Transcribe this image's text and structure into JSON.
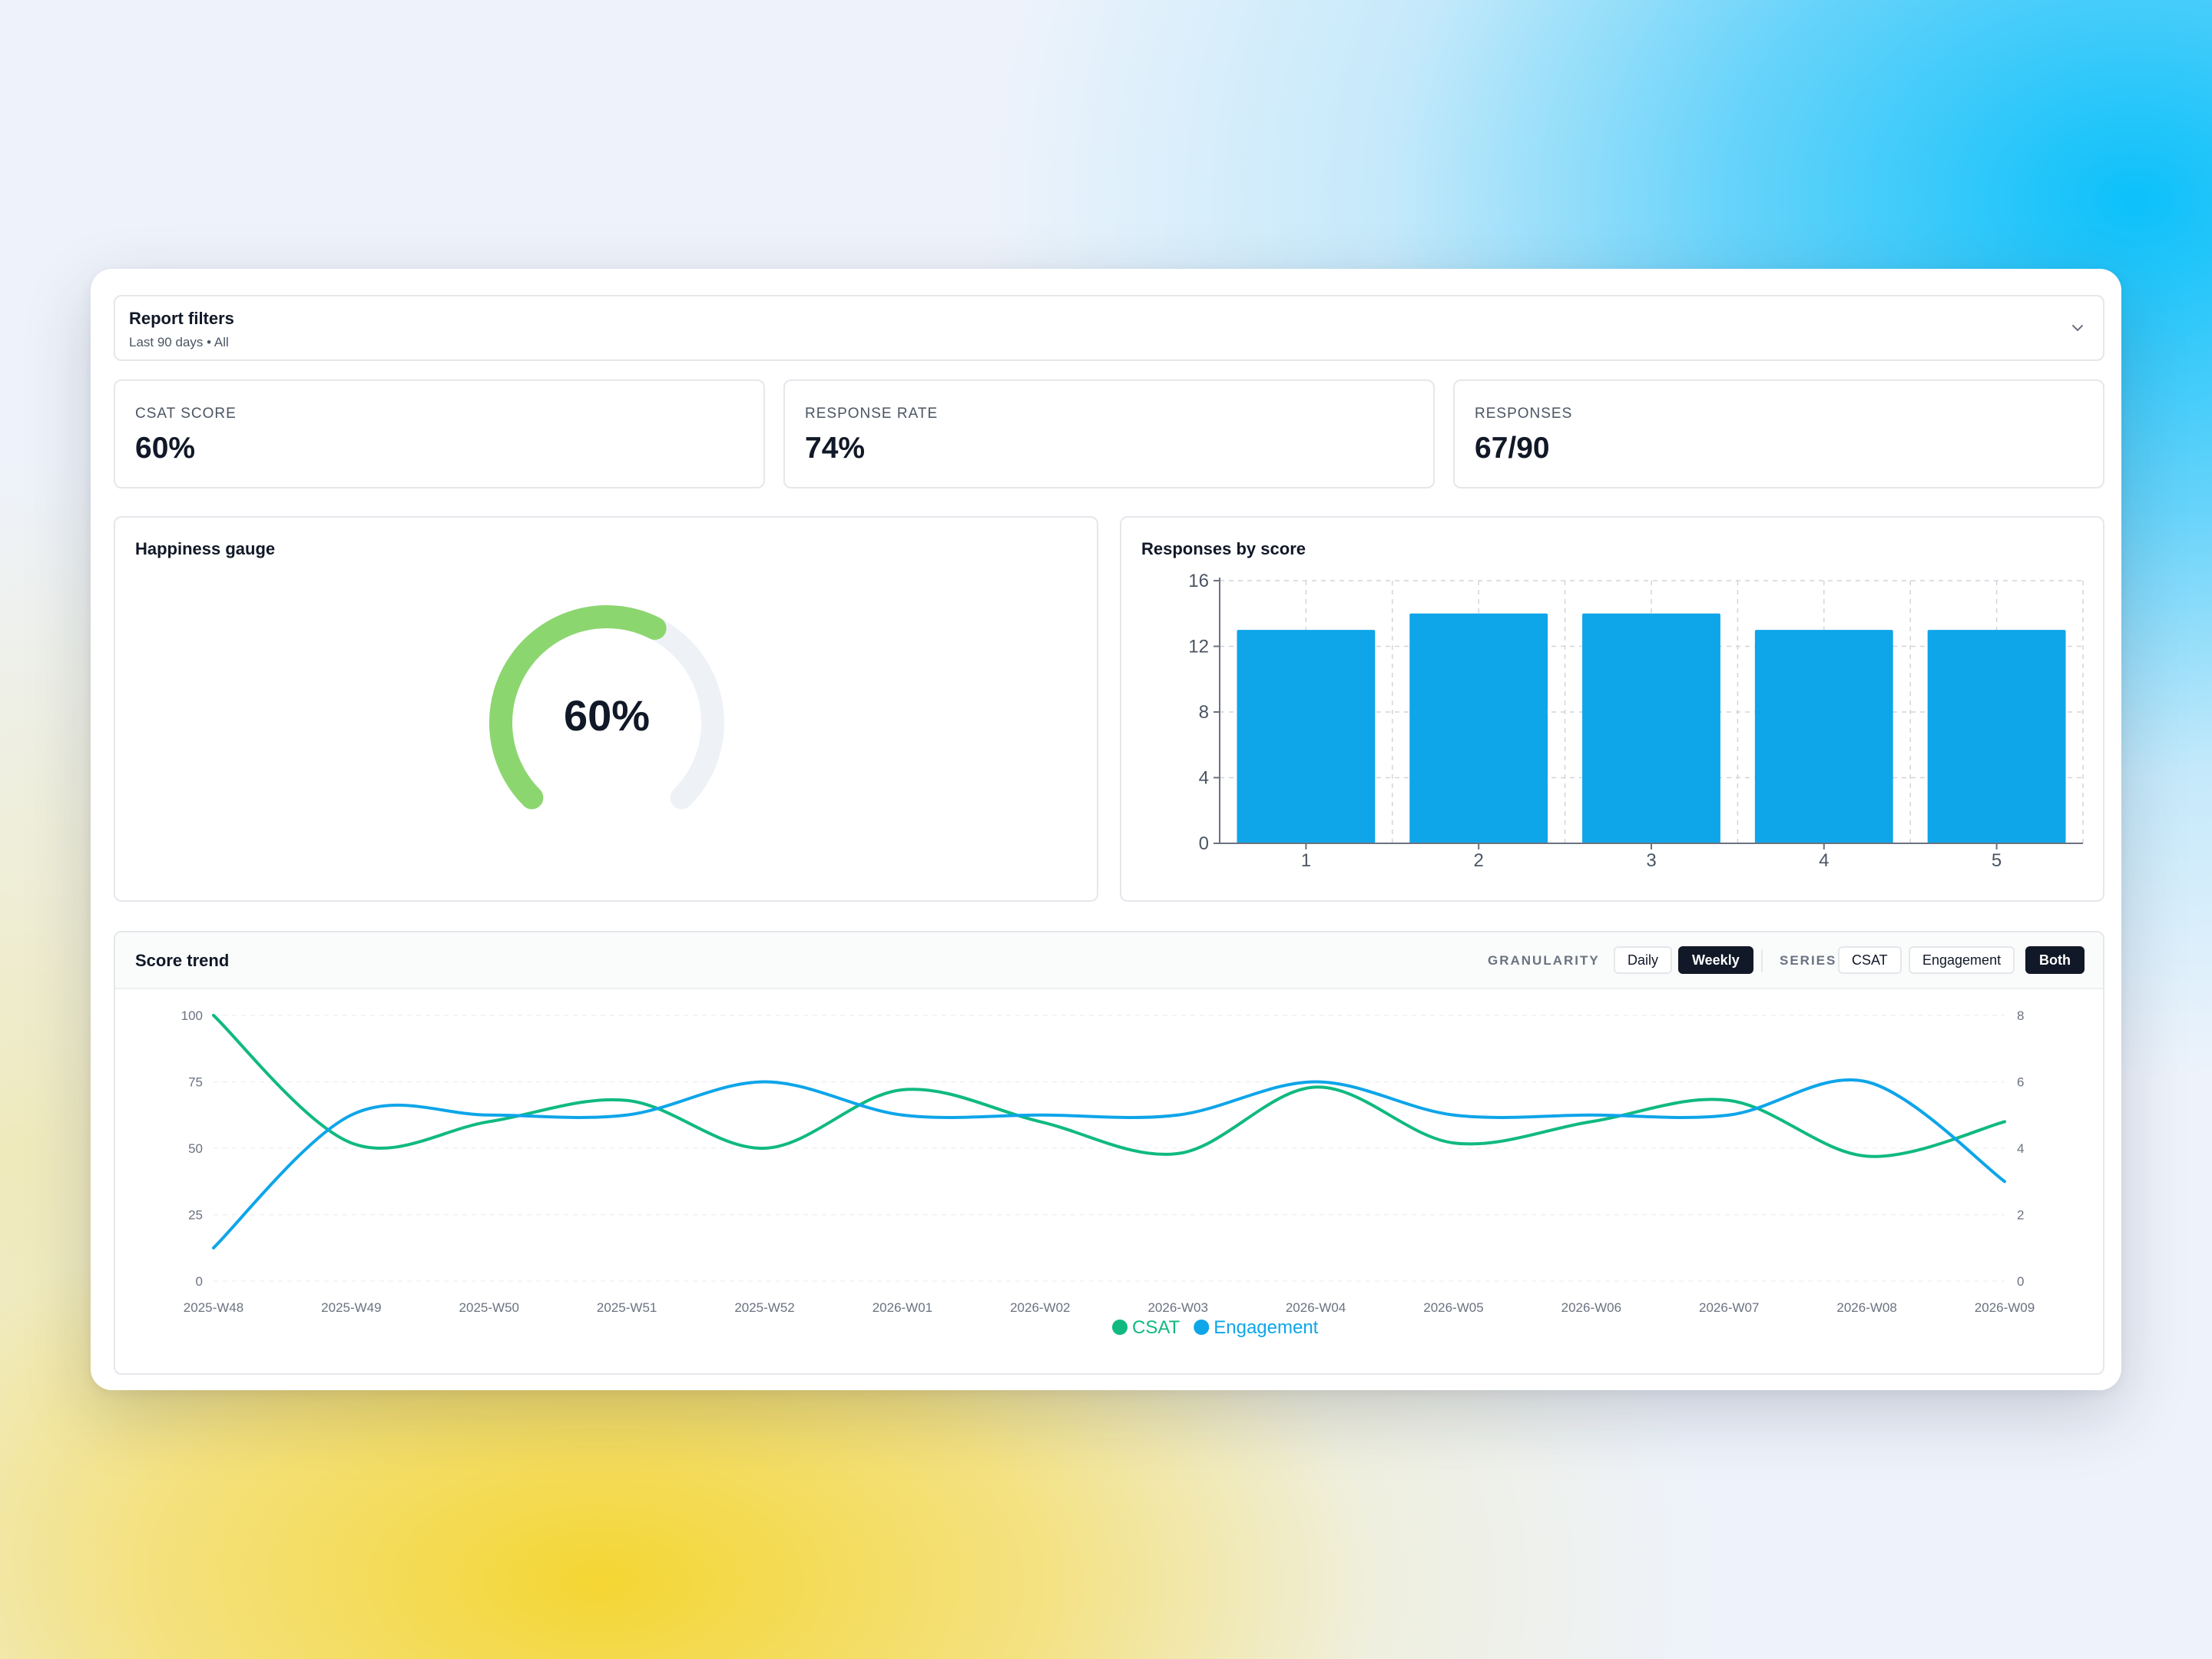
{
  "filters": {
    "title": "Report filters",
    "summary": "Last 90 days • All",
    "toggle_icon": "chevron-down-icon"
  },
  "kpis": [
    {
      "label": "CSAT SCORE",
      "value": "60%"
    },
    {
      "label": "RESPONSE RATE",
      "value": "74%"
    },
    {
      "label": "RESPONSES",
      "value": "67/90"
    }
  ],
  "gauge": {
    "title": "Happiness gauge",
    "value_label": "60%",
    "value": 60,
    "color": "#8cd66f",
    "track_color": "#eef2f7"
  },
  "bars": {
    "title": "Responses by score",
    "chart_data": {
      "type": "bar",
      "categories": [
        "1",
        "2",
        "3",
        "4",
        "5"
      ],
      "values": [
        13,
        14,
        14,
        13,
        13
      ],
      "ylim": [
        0,
        16
      ],
      "yticks": [
        "0",
        "4",
        "8",
        "12",
        "16"
      ],
      "grid": true,
      "color": "#0ea5e9"
    }
  },
  "trend": {
    "title": "Score trend",
    "granularity_label": "GRANULARITY",
    "granularity_options": [
      "Daily",
      "Weekly"
    ],
    "granularity_selected": "Weekly",
    "series_label": "SERIES",
    "series_options": [
      "CSAT",
      "Engagement",
      "Both"
    ],
    "series_selected": "Both",
    "chart_data": {
      "type": "line",
      "x": [
        "2025-W48",
        "2025-W49",
        "2025-W50",
        "2025-W51",
        "2025-W52",
        "2026-W01",
        "2026-W02",
        "2026-W03",
        "2026-W04",
        "2026-W05",
        "2026-W06",
        "2026-W07",
        "2026-W08",
        "2026-W09"
      ],
      "y_left_ticks": [
        "0",
        "25",
        "50",
        "75",
        "100"
      ],
      "y_left_range": [
        0,
        100
      ],
      "y_right_ticks": [
        "0",
        "2",
        "4",
        "6",
        "8"
      ],
      "y_right_range": [
        0,
        8
      ],
      "series": [
        {
          "name": "CSAT",
          "axis": "left",
          "color": "#10b981",
          "values": [
            100,
            52,
            60,
            68,
            50,
            72,
            60,
            48,
            73,
            52,
            60,
            68,
            47,
            60
          ]
        },
        {
          "name": "Engagement",
          "axis": "right",
          "color": "#0ea5e9",
          "values": [
            1,
            5,
            5,
            5,
            6,
            5,
            5,
            5,
            6,
            5,
            5,
            5,
            6,
            3
          ]
        }
      ],
      "legend": "bottom"
    }
  }
}
